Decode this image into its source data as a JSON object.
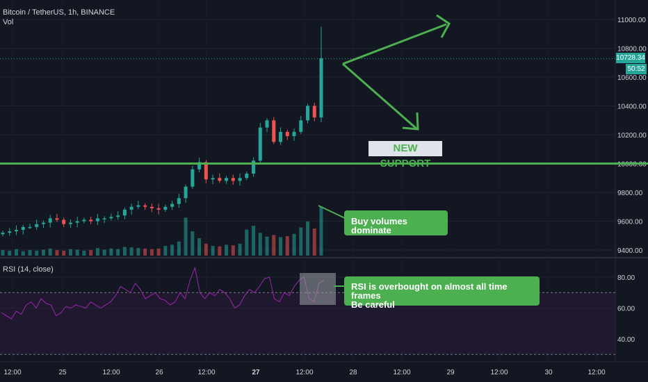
{
  "header": {
    "symbol": "Bitcoin / TetherUS, 1h, BINANCE",
    "volume_label": "Vol",
    "rsi_label": "RSI (14, close)"
  },
  "price_panel": {
    "last_price": "10728.34",
    "countdown": "50:52",
    "support_label": "NEW SUPPORT",
    "support_level": 10000
  },
  "annotations": {
    "volumes": "Buy volumes dominate",
    "rsi_line1": "RSI is overbought on almost all time frames",
    "rsi_line2": "Be careful"
  },
  "chart_data": [
    {
      "type": "candlestick",
      "title": "Bitcoin / TetherUS, 1h, BINANCE",
      "ylim": [
        9350,
        11100
      ],
      "y_ticks": [
        "11000.00",
        "10800.00",
        "10600.00",
        "10400.00",
        "10200.00",
        "10000.00",
        "9800.00",
        "9600.00",
        "9400.00"
      ],
      "x_ticks": [
        "12:00",
        "25",
        "12:00",
        "26",
        "12:00",
        "27",
        "12:00",
        "28",
        "12:00",
        "29",
        "12:00",
        "30",
        "12:00"
      ],
      "close_path": [
        9520,
        9530,
        9540,
        9560,
        9560,
        9580,
        9590,
        9620,
        9610,
        9580,
        9590,
        9600,
        9610,
        9600,
        9620,
        9620,
        9630,
        9640,
        9680,
        9700,
        9710,
        9700,
        9690,
        9680,
        9700,
        9720,
        9760,
        9840,
        9960,
        10010,
        9890,
        9900,
        9880,
        9900,
        9880,
        9900,
        9930,
        10020,
        10250,
        10300,
        10150,
        10220,
        10190,
        10220,
        10300,
        10400,
        10320,
        10730
      ],
      "volume_levels": [
        0.1,
        0.09,
        0.12,
        0.08,
        0.1,
        0.09,
        0.11,
        0.13,
        0.1,
        0.09,
        0.12,
        0.11,
        0.09,
        0.1,
        0.14,
        0.11,
        0.13,
        0.12,
        0.16,
        0.15,
        0.14,
        0.13,
        0.12,
        0.13,
        0.18,
        0.2,
        0.26,
        0.7,
        0.45,
        0.32,
        0.22,
        0.18,
        0.17,
        0.2,
        0.19,
        0.22,
        0.48,
        0.55,
        0.42,
        0.35,
        0.38,
        0.34,
        0.36,
        0.4,
        0.52,
        0.63,
        0.5,
        0.9
      ]
    },
    {
      "type": "line",
      "title": "RSI (14, close)",
      "ylim": [
        25,
        95
      ],
      "y_ticks": [
        "80.00",
        "60.00",
        "40.00"
      ],
      "overbought": 70,
      "oversold": 30,
      "line_color": "#9c27b0",
      "values": [
        57,
        55,
        53,
        58,
        56,
        62,
        64,
        60,
        66,
        63,
        62,
        55,
        57,
        61,
        60,
        62,
        61,
        60,
        64,
        62,
        60,
        62,
        64,
        68,
        74,
        72,
        70,
        76,
        72,
        66,
        68,
        70,
        66,
        65,
        62,
        64,
        70,
        66,
        78,
        86,
        70,
        66,
        70,
        68,
        72,
        70,
        66,
        60,
        62,
        68,
        72,
        70,
        74,
        79,
        80,
        66,
        64,
        70,
        68,
        74,
        78,
        80,
        66,
        64,
        76,
        78
      ]
    }
  ],
  "colors": {
    "background": "#131722",
    "up": "#26a69a",
    "down": "#ef5350",
    "accent_green": "#4caf50",
    "rsi": "#9c27b0"
  }
}
